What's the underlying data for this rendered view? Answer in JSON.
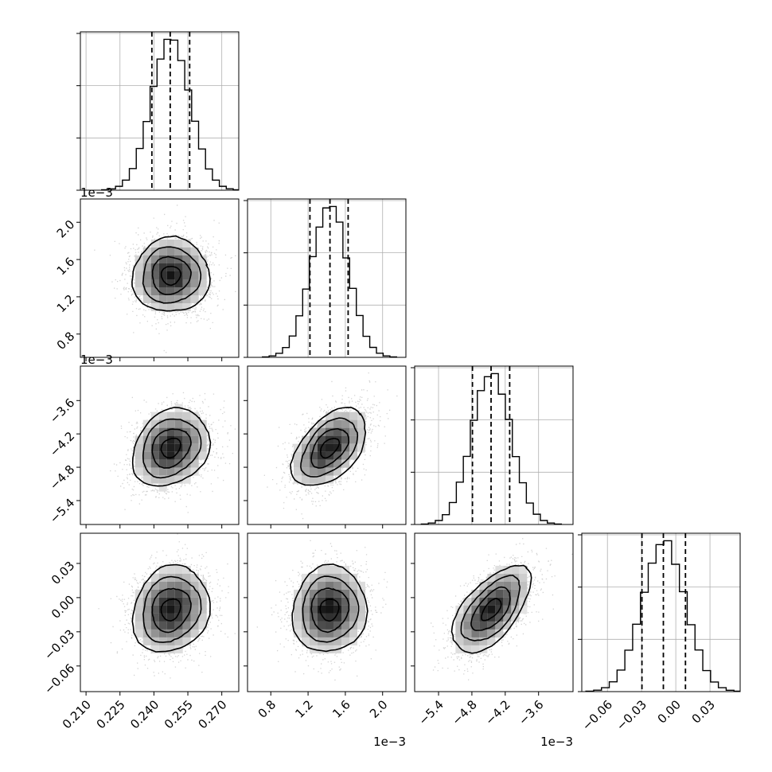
{
  "chart_data": {
    "type": "corner",
    "n_params": 4,
    "params": [
      {
        "range": [
          0.2075,
          0.2775
        ],
        "ticks": [
          0.21,
          0.225,
          0.24,
          0.255,
          0.27
        ],
        "tick_labels": [
          "0.210",
          "0.225",
          "0.240",
          "0.255",
          "0.270"
        ],
        "offset": "",
        "q16": 0.2391,
        "q50": 0.2472,
        "q84": 0.2558,
        "mean": 0.2475,
        "sd": 0.0085
      },
      {
        "range": [
          0.00055,
          0.00225
        ],
        "ticks": [
          0.0008,
          0.0012,
          0.0016,
          0.002
        ],
        "tick_labels": [
          "0.8",
          "1.2",
          "1.6",
          "2.0"
        ],
        "offset": "1e−3",
        "q16": 0.00122,
        "q50": 0.001435,
        "q84": 0.00163,
        "mean": 0.00143,
        "sd": 0.0002
      },
      {
        "range": [
          -0.00583,
          -0.00298
        ],
        "ticks": [
          -0.0054,
          -0.0048,
          -0.0042,
          -0.0036
        ],
        "tick_labels": [
          "−5.4",
          "−4.8",
          "−4.2",
          "−3.6"
        ],
        "offset": "1e−3",
        "q16": -0.00479,
        "q50": -0.004455,
        "q84": -0.00412,
        "mean": -0.00445,
        "sd": 0.00035
      },
      {
        "range": [
          -0.0825,
          0.0565
        ],
        "ticks": [
          -0.06,
          -0.03,
          0.0,
          0.03
        ],
        "tick_labels": [
          "−0.06",
          "−0.03",
          "0.00",
          "0.03"
        ],
        "offset": "",
        "q16": -0.0297,
        "q50": -0.0109,
        "q84": 0.0085,
        "mean": -0.0105,
        "sd": 0.019
      }
    ],
    "correlations": [
      {
        "pair": [
          1,
          0
        ],
        "rho": 0.02
      },
      {
        "pair": [
          2,
          0
        ],
        "rho": 0.22
      },
      {
        "pair": [
          2,
          1
        ],
        "rho": 0.48
      },
      {
        "pair": [
          3,
          0
        ],
        "rho": 0.15
      },
      {
        "pair": [
          3,
          1
        ],
        "rho": 0.06
      },
      {
        "pair": [
          3,
          2
        ],
        "rho": 0.6
      }
    ],
    "hist_bins": 20,
    "quantiles": [
      0.16,
      0.5,
      0.84
    ],
    "contour_levels_sigma": [
      0.5,
      1.0,
      1.5,
      2.0
    ],
    "grid": true,
    "colors": {
      "line": "#000000",
      "grid": "#b0b0b0",
      "points": "#808080"
    }
  }
}
